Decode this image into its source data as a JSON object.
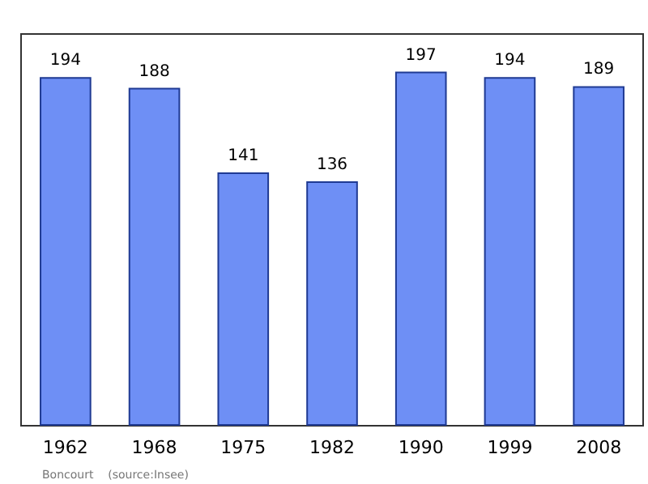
{
  "chart_data": {
    "type": "bar",
    "categories": [
      "1962",
      "1968",
      "1975",
      "1982",
      "1990",
      "1999",
      "2008"
    ],
    "values": [
      194,
      188,
      141,
      136,
      197,
      194,
      189
    ],
    "color": "#6e8ff5",
    "data_labels": true,
    "ylim": [
      0,
      218
    ],
    "tick_labels": "x",
    "grid": false,
    "annotations": [
      "Boncourt    (source:Insee)"
    ]
  }
}
